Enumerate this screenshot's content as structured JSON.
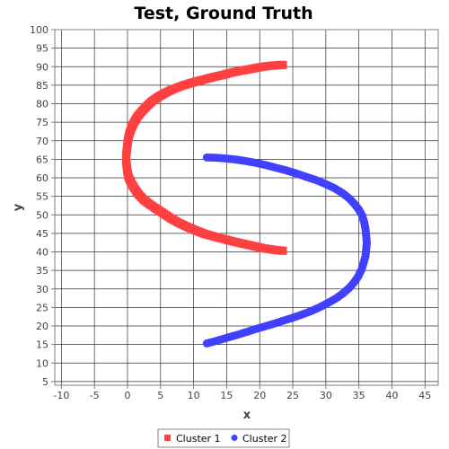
{
  "chart_data": {
    "type": "scatter",
    "title": "Test, Ground Truth",
    "xlabel": "x",
    "ylabel": "y",
    "xlim": [
      -11,
      47
    ],
    "ylim": [
      4,
      100
    ],
    "xticks": [
      "-10",
      "-5",
      "0",
      "5",
      "10",
      "15",
      "20",
      "25",
      "30",
      "35",
      "40",
      "45"
    ],
    "yticks": [
      "5",
      "10",
      "15",
      "20",
      "25",
      "30",
      "35",
      "40",
      "45",
      "50",
      "55",
      "60",
      "65",
      "70",
      "75",
      "80",
      "85",
      "90",
      "95",
      "100"
    ],
    "grid": true,
    "legend_position": "bottom",
    "series": [
      {
        "name": "Cluster 1",
        "marker": "square",
        "color": "#ff4040",
        "points": [
          [
            23.5,
            90.5
          ],
          [
            22,
            90.3
          ],
          [
            20.5,
            90
          ],
          [
            19,
            89.5
          ],
          [
            17.5,
            89
          ],
          [
            16,
            88.5
          ],
          [
            14.5,
            87.8
          ],
          [
            13,
            87.2
          ],
          [
            11.5,
            86.5
          ],
          [
            10,
            85.8
          ],
          [
            8.5,
            85
          ],
          [
            7,
            84
          ],
          [
            5.8,
            83
          ],
          [
            4.8,
            82
          ],
          [
            3.8,
            80.8
          ],
          [
            3,
            79.5
          ],
          [
            2.2,
            78
          ],
          [
            1.5,
            76.5
          ],
          [
            1,
            75
          ],
          [
            0.6,
            73.5
          ],
          [
            0.3,
            72
          ],
          [
            0.1,
            70.5
          ],
          [
            0,
            69
          ],
          [
            -0.1,
            67.5
          ],
          [
            -0.2,
            66
          ],
          [
            -0.2,
            64.5
          ],
          [
            -0.1,
            63
          ],
          [
            0,
            61.5
          ],
          [
            0.2,
            60
          ],
          [
            0.6,
            58.5
          ],
          [
            1.1,
            57
          ],
          [
            1.7,
            55.5
          ],
          [
            2.5,
            54
          ],
          [
            3.4,
            52.8
          ],
          [
            4.4,
            51.6
          ],
          [
            5.5,
            50.3
          ],
          [
            6.6,
            49
          ],
          [
            7.8,
            47.8
          ],
          [
            9,
            46.8
          ],
          [
            10.3,
            45.8
          ],
          [
            11.6,
            44.9
          ],
          [
            13,
            44.2
          ],
          [
            14.5,
            43.5
          ],
          [
            16,
            42.8
          ],
          [
            17.5,
            42.2
          ],
          [
            19,
            41.6
          ],
          [
            20.5,
            41
          ],
          [
            22,
            40.6
          ],
          [
            23.5,
            40.3
          ]
        ]
      },
      {
        "name": "Cluster 2",
        "marker": "circle",
        "color": "#4040ff",
        "points": [
          [
            12,
            65.5
          ],
          [
            13.5,
            65.4
          ],
          [
            15,
            65.2
          ],
          [
            16.5,
            64.9
          ],
          [
            18,
            64.5
          ],
          [
            19.5,
            64
          ],
          [
            21,
            63.4
          ],
          [
            22.5,
            62.7
          ],
          [
            24,
            62
          ],
          [
            25.5,
            61.2
          ],
          [
            27,
            60.3
          ],
          [
            28.5,
            59.4
          ],
          [
            30,
            58.3
          ],
          [
            31.3,
            57.2
          ],
          [
            32.5,
            55.9
          ],
          [
            33.5,
            54.5
          ],
          [
            34.3,
            53
          ],
          [
            35,
            51.4
          ],
          [
            35.5,
            49.8
          ],
          [
            35.8,
            48
          ],
          [
            36,
            46.2
          ],
          [
            36.1,
            44.4
          ],
          [
            36.2,
            42.5
          ],
          [
            36.1,
            40.6
          ],
          [
            36,
            38.8
          ],
          [
            35.7,
            37
          ],
          [
            35.4,
            35.2
          ],
          [
            34.9,
            33.4
          ],
          [
            34.3,
            31.8
          ],
          [
            33.5,
            30.2
          ],
          [
            32.6,
            28.8
          ],
          [
            31.5,
            27.4
          ],
          [
            30.3,
            26.2
          ],
          [
            29,
            25
          ],
          [
            27.6,
            23.9
          ],
          [
            26.1,
            22.9
          ],
          [
            24.6,
            22
          ],
          [
            23,
            21.1
          ],
          [
            21.4,
            20.2
          ],
          [
            19.8,
            19.4
          ],
          [
            18.2,
            18.5
          ],
          [
            16.6,
            17.6
          ],
          [
            15,
            16.8
          ],
          [
            13.5,
            16
          ],
          [
            12,
            15.3
          ]
        ]
      }
    ]
  }
}
